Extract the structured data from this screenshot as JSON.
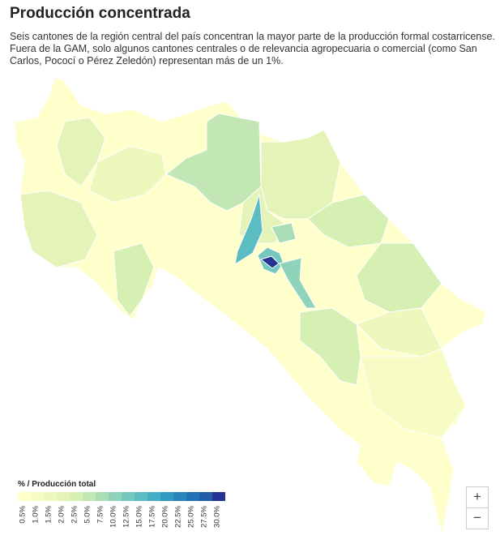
{
  "header": {
    "title": "Producción concentrada",
    "subtitle": "Seis cantones de la región central del país concentran la mayor parte de la producción formal costarricense. Fuera de la GAM, solo algunos cantones centrales o de relevancia agropecuaria o comercial (como San Carlos, Pococí o Pérez Zeledón) representan más de un 1%."
  },
  "legend": {
    "title": "% / Producción total",
    "labels": [
      "0.5%",
      "1.0%",
      "1.5%",
      "2.0%",
      "2.5%",
      "5.0%",
      "7.5%",
      "10.0%",
      "12.5%",
      "15.0%",
      "17.5%",
      "20.0%",
      "22.5%",
      "25.0%",
      "27.5%",
      "30.0%"
    ],
    "colors": [
      "#ffffcc",
      "#f7fcc4",
      "#eef8bd",
      "#e4f4b8",
      "#d6efb3",
      "#c2e7b5",
      "#a8ddb5",
      "#8fd3ba",
      "#74c8bd",
      "#5bbcc2",
      "#43aec4",
      "#339ac1",
      "#2886bc",
      "#2171b5",
      "#225ea8",
      "#253494"
    ]
  },
  "controls": {
    "zoom_in": "+",
    "zoom_out": "−"
  }
}
